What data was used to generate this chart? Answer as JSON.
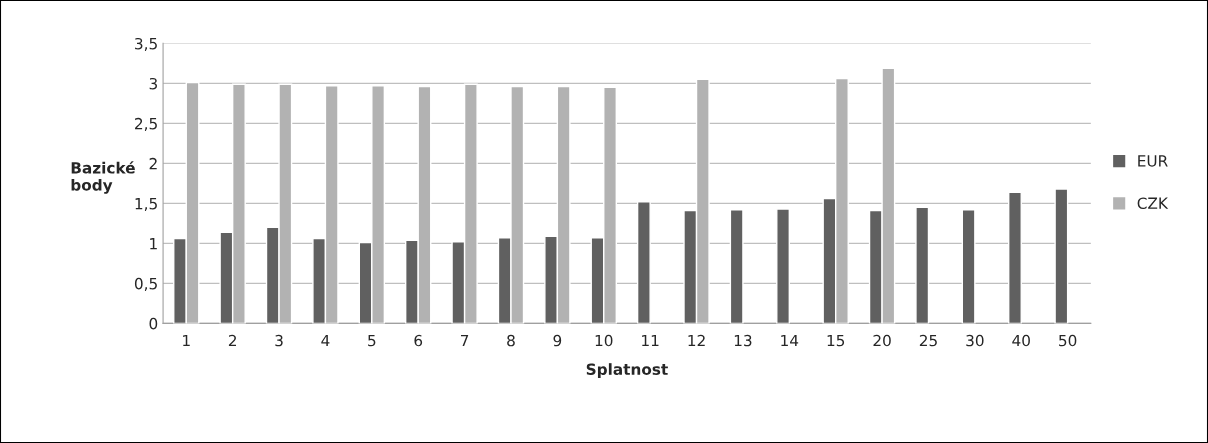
{
  "chart_data": {
    "type": "bar",
    "xlabel": "Splatnost",
    "ylabel": "Bazické\nbody",
    "categories": [
      "1",
      "2",
      "3",
      "4",
      "5",
      "6",
      "7",
      "8",
      "9",
      "10",
      "11",
      "12",
      "13",
      "14",
      "15",
      "20",
      "25",
      "30",
      "40",
      "50"
    ],
    "series": [
      {
        "name": "EUR",
        "color": "#606060",
        "values": [
          1.06,
          1.14,
          1.2,
          1.06,
          1.01,
          1.04,
          1.02,
          1.07,
          1.09,
          1.07,
          1.52,
          1.41,
          1.42,
          1.43,
          1.56,
          1.41,
          1.45,
          1.42,
          1.64,
          1.68
        ]
      },
      {
        "name": "CZK",
        "color": "#b2b2b2",
        "values": [
          3.01,
          2.99,
          2.99,
          2.97,
          2.97,
          2.96,
          2.99,
          2.96,
          2.96,
          2.95,
          null,
          3.05,
          null,
          null,
          3.06,
          3.19,
          null,
          null,
          null,
          null
        ]
      }
    ],
    "ylim": [
      0,
      3.5
    ],
    "yticks": [
      {
        "value": 0,
        "label": "0"
      },
      {
        "value": 0.5,
        "label": "0,5"
      },
      {
        "value": 1,
        "label": "1"
      },
      {
        "value": 1.5,
        "label": "1,5"
      },
      {
        "value": 2,
        "label": "2"
      },
      {
        "value": 2.5,
        "label": "2,5"
      },
      {
        "value": 3,
        "label": "3"
      },
      {
        "value": 3.5,
        "label": "3,5"
      }
    ],
    "grid": "y",
    "legend": "right"
  }
}
